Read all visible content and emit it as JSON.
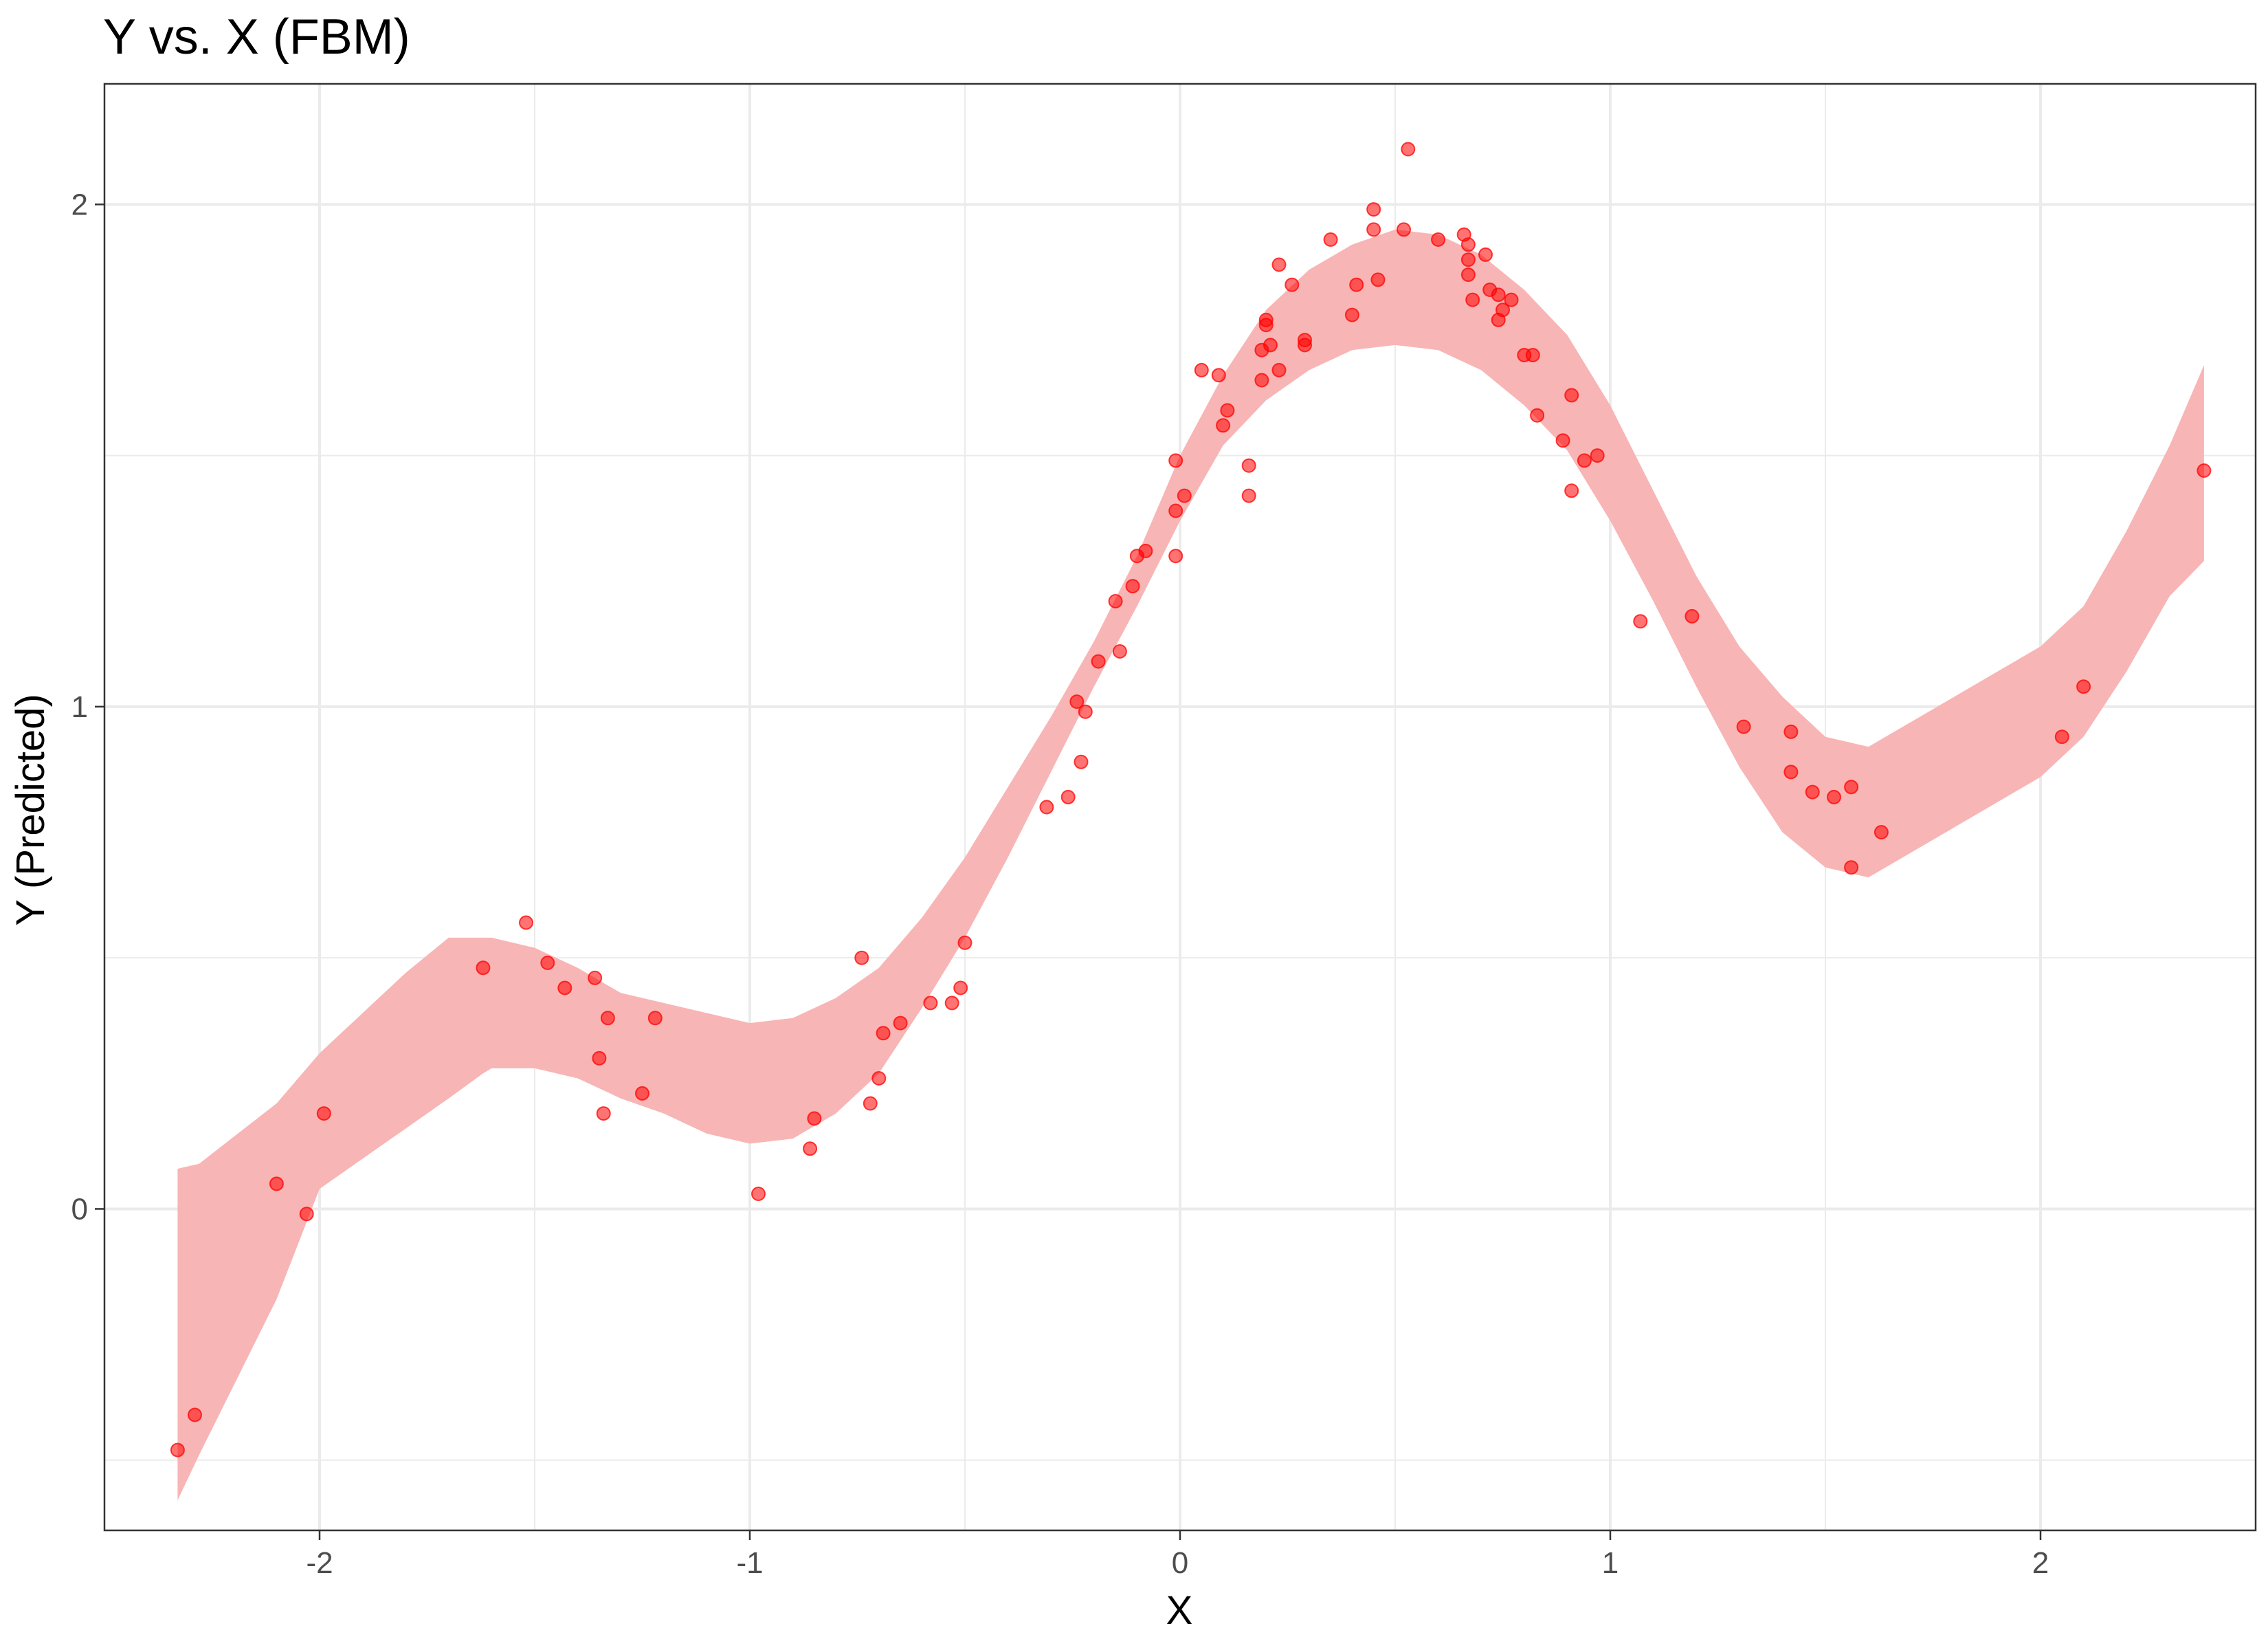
{
  "chart_data": {
    "type": "scatter",
    "title": "Y vs. X (FBM)",
    "xlabel": "X",
    "ylabel": "Y (Predicted)",
    "xlim": [
      -2.5,
      2.5
    ],
    "ylim": [
      -0.64,
      2.24
    ],
    "x_ticks": [
      -2,
      -1,
      0,
      1,
      2
    ],
    "y_ticks": [
      0,
      1,
      2
    ],
    "x_tick_labels": [
      "-2",
      "-1",
      "0",
      "1",
      "2"
    ],
    "y_tick_labels": [
      "0",
      "1",
      "2"
    ],
    "grid": true,
    "colors": {
      "points": "#ff0000",
      "band": "#f8b5b5",
      "grid": "#ebebeb",
      "panel_border": "#333333"
    },
    "band": {
      "x": [
        -2.33,
        -2.28,
        -2.1,
        -2.0,
        -1.9,
        -1.8,
        -1.7,
        -1.62,
        -1.6,
        -1.5,
        -1.4,
        -1.3,
        -1.2,
        -1.1,
        -1.0,
        -0.9,
        -0.8,
        -0.7,
        -0.6,
        -0.5,
        -0.4,
        -0.3,
        -0.2,
        -0.1,
        0.0,
        0.1,
        0.2,
        0.3,
        0.4,
        0.5,
        0.6,
        0.7,
        0.8,
        0.9,
        1.0,
        1.1,
        1.2,
        1.3,
        1.4,
        1.5,
        1.6,
        1.7,
        1.8,
        1.9,
        2.0,
        2.1,
        2.2,
        2.3,
        2.38
      ],
      "upper": [
        0.08,
        0.09,
        0.21,
        0.31,
        0.39,
        0.47,
        0.54,
        0.54,
        0.54,
        0.52,
        0.48,
        0.43,
        0.41,
        0.39,
        0.37,
        0.38,
        0.42,
        0.48,
        0.58,
        0.7,
        0.84,
        0.98,
        1.13,
        1.3,
        1.5,
        1.66,
        1.79,
        1.87,
        1.92,
        1.95,
        1.94,
        1.9,
        1.83,
        1.74,
        1.6,
        1.43,
        1.26,
        1.12,
        1.02,
        0.94,
        0.92,
        0.97,
        1.02,
        1.07,
        1.12,
        1.2,
        1.35,
        1.52,
        1.68
      ],
      "lower": [
        -0.58,
        -0.49,
        -0.18,
        0.04,
        0.1,
        0.16,
        0.22,
        0.27,
        0.28,
        0.28,
        0.26,
        0.22,
        0.19,
        0.15,
        0.13,
        0.14,
        0.19,
        0.27,
        0.4,
        0.54,
        0.7,
        0.87,
        1.04,
        1.2,
        1.37,
        1.52,
        1.61,
        1.67,
        1.71,
        1.72,
        1.71,
        1.67,
        1.6,
        1.51,
        1.37,
        1.21,
        1.04,
        0.88,
        0.75,
        0.68,
        0.66,
        0.71,
        0.76,
        0.81,
        0.86,
        0.94,
        1.07,
        1.22,
        1.29
      ]
    },
    "points": {
      "x": [
        -2.33,
        -2.29,
        -2.1,
        -2.03,
        -1.99,
        -1.62,
        -1.52,
        -1.47,
        -1.43,
        -1.36,
        -1.35,
        -1.34,
        -1.33,
        -1.25,
        -1.22,
        -0.98,
        -0.86,
        -0.85,
        -0.74,
        -0.72,
        -0.7,
        -0.69,
        -0.65,
        -0.58,
        -0.53,
        -0.51,
        -0.5,
        -0.31,
        -0.26,
        -0.24,
        -0.23,
        -0.22,
        -0.19,
        -0.15,
        -0.14,
        -0.11,
        -0.1,
        -0.08,
        -0.01,
        -0.01,
        -0.01,
        0.01,
        0.05,
        0.09,
        0.1,
        0.11,
        0.16,
        0.16,
        0.19,
        0.19,
        0.2,
        0.2,
        0.21,
        0.23,
        0.23,
        0.26,
        0.29,
        0.29,
        0.35,
        0.4,
        0.41,
        0.45,
        0.45,
        0.46,
        0.52,
        0.53,
        0.6,
        0.66,
        0.67,
        0.67,
        0.67,
        0.68,
        0.71,
        0.72,
        0.74,
        0.74,
        0.75,
        0.77,
        0.8,
        0.82,
        0.83,
        0.89,
        0.91,
        0.91,
        0.94,
        0.97,
        1.07,
        1.19,
        1.31,
        1.42,
        1.42,
        1.47,
        1.52,
        1.56,
        1.56,
        1.63,
        2.05,
        2.1,
        2.38
      ],
      "y": [
        -0.48,
        -0.41,
        0.05,
        -0.01,
        0.19,
        0.48,
        0.57,
        0.49,
        0.44,
        0.46,
        0.3,
        0.19,
        0.38,
        0.23,
        0.38,
        0.03,
        0.12,
        0.18,
        0.5,
        0.21,
        0.26,
        0.35,
        0.37,
        0.41,
        0.41,
        0.44,
        0.53,
        0.8,
        0.82,
        1.01,
        0.89,
        0.99,
        1.09,
        1.21,
        1.11,
        1.24,
        1.3,
        1.31,
        1.49,
        1.3,
        1.39,
        1.42,
        1.67,
        1.66,
        1.56,
        1.59,
        1.48,
        1.42,
        1.71,
        1.65,
        1.77,
        1.76,
        1.72,
        1.88,
        1.67,
        1.84,
        1.73,
        1.72,
        1.93,
        1.78,
        1.84,
        1.99,
        1.95,
        1.85,
        1.95,
        2.11,
        1.93,
        1.94,
        1.92,
        1.89,
        1.86,
        1.81,
        1.9,
        1.83,
        1.82,
        1.77,
        1.79,
        1.81,
        1.7,
        1.7,
        1.58,
        1.53,
        1.62,
        1.43,
        1.49,
        1.5,
        1.17,
        1.18,
        0.96,
        0.95,
        0.87,
        0.83,
        0.82,
        0.84,
        0.68,
        0.75,
        0.94,
        1.04,
        1.47
      ]
    }
  }
}
